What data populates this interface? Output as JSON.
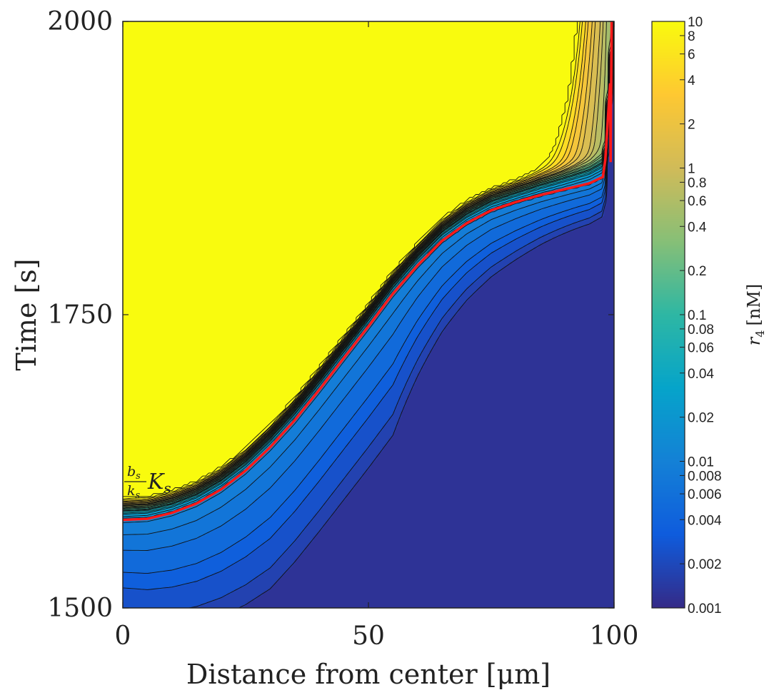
{
  "chart_data": {
    "type": "heatmap",
    "subtype": "filled contour",
    "title": "",
    "xlabel": "Distance from center [μm]",
    "ylabel": "Time [s]",
    "xlim": [
      0,
      100
    ],
    "ylim": [
      1500,
      2000
    ],
    "x_ticks": [
      "0",
      "50",
      "100"
    ],
    "y_ticks": [
      "1500",
      "1750",
      "2000"
    ],
    "colorbar": {
      "label": "r₄ [nM]",
      "scale": "log",
      "range": [
        0.001,
        10
      ],
      "colormap": "parula",
      "tick_values": [
        0.001,
        0.002,
        0.004,
        0.006,
        0.008,
        0.01,
        0.02,
        0.04,
        0.06,
        0.08,
        0.1,
        0.2,
        0.4,
        0.6,
        0.8,
        1,
        2,
        4,
        6,
        8,
        10
      ],
      "tick_labels": [
        "0.001",
        "0.002",
        "0.004",
        "0.006",
        "0.008",
        "0.01",
        "0.02",
        "0.04",
        "0.06",
        "0.08",
        "0.1",
        "0.2",
        "0.4",
        "0.6",
        "0.8",
        "1",
        "2",
        "4",
        "6",
        "8",
        "10"
      ]
    },
    "threshold_curve": {
      "label": "b_s/k_s K_s",
      "color": "#ff1a1a",
      "x": [
        0,
        5,
        10,
        15,
        20,
        25,
        30,
        35,
        40,
        45,
        50,
        55,
        60,
        65,
        70,
        75,
        80,
        85,
        90,
        95,
        98,
        100
      ],
      "y": [
        1575,
        1576,
        1581,
        1589,
        1601,
        1617,
        1637,
        1660,
        1686,
        1713,
        1740,
        1768,
        1792,
        1813,
        1828,
        1839,
        1846,
        1852,
        1857,
        1862,
        1868,
        2000
      ]
    },
    "contour_levels": [
      0.001,
      0.0015,
      0.002,
      0.003,
      0.004,
      0.006,
      0.008,
      0.01,
      0.015,
      0.02,
      0.03,
      0.04,
      0.06,
      0.08,
      0.1,
      0.15,
      0.2,
      0.3,
      0.4,
      0.6,
      0.8,
      1,
      1.5,
      2,
      3,
      4,
      6,
      8,
      10
    ],
    "colors": {
      "parula": [
        "#352a87",
        "#0f5cdd",
        "#1481d6",
        "#06a4ca",
        "#2eb7a4",
        "#87bf77",
        "#d1bb59",
        "#fec832",
        "#f9fb0e"
      ],
      "threshold": "#ff1a1a"
    }
  },
  "labels": {
    "curve_label_num": "b",
    "curve_label_num_sub": "s",
    "curve_label_den": "k",
    "curve_label_den_sub": "s",
    "curve_label_main": "K",
    "curve_label_main_sub": "s",
    "cb_label_main": "r",
    "cb_label_sub": "4",
    "cb_label_unit": "[nM]"
  }
}
